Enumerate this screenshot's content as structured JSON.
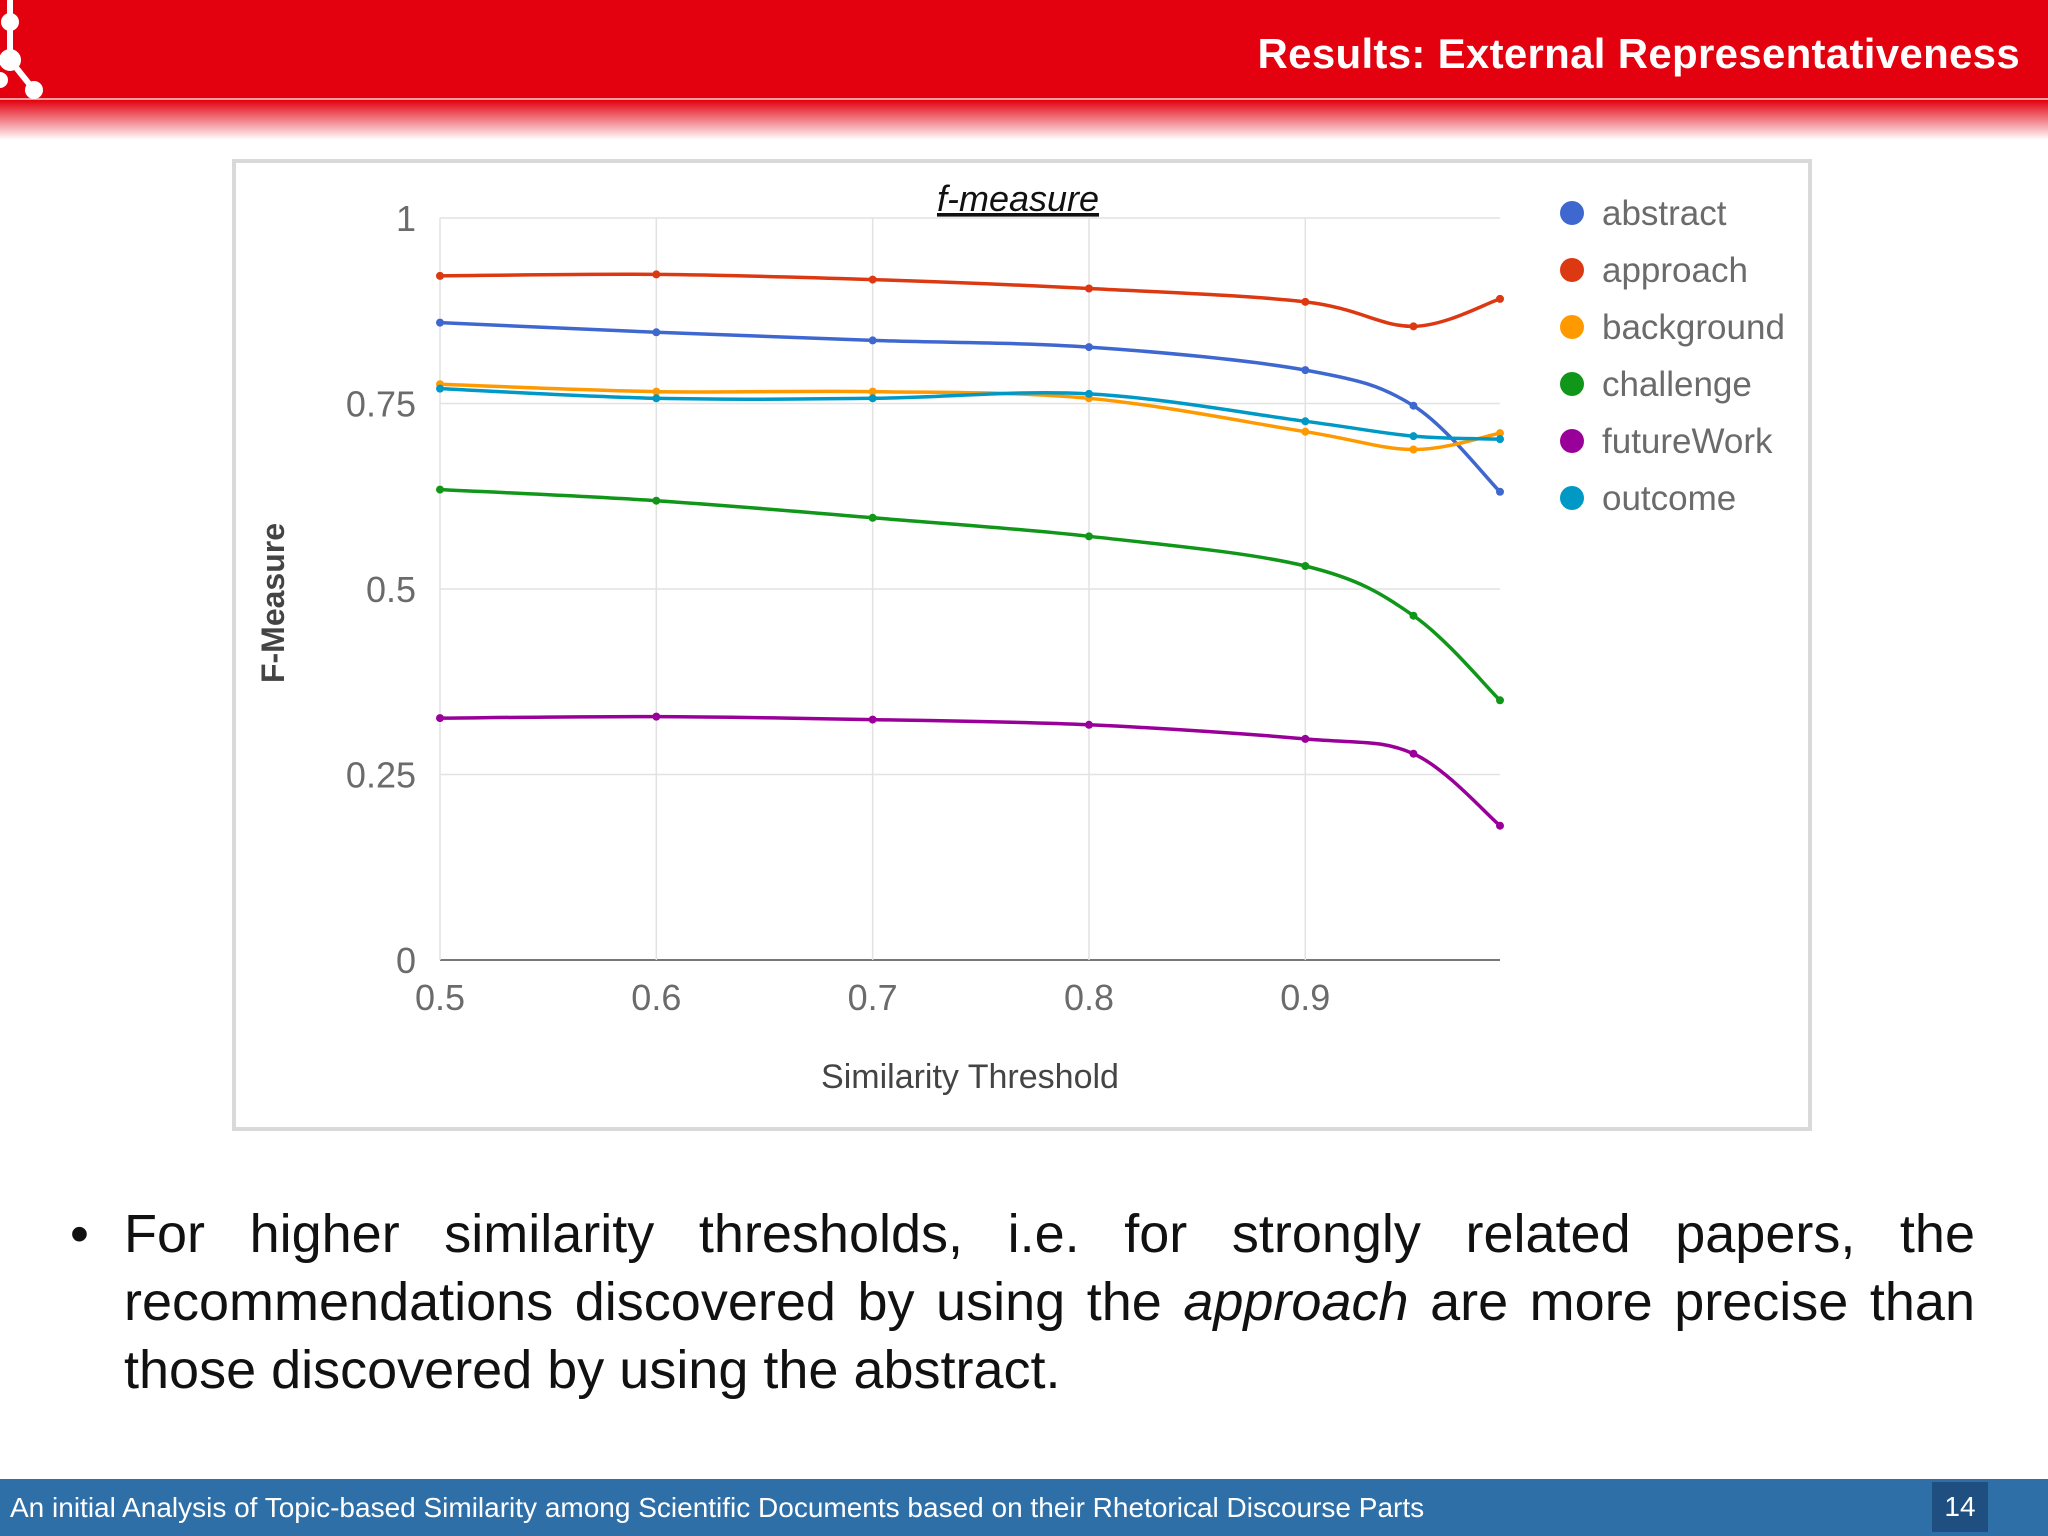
{
  "slide": {
    "title": "Results: External Representativeness",
    "bullet_prefix": "For higher similarity thresholds, i.e. for strongly related papers, the recommendations discovered by using the ",
    "bullet_emph": "approach",
    "bullet_suffix": " are more precise than those discovered by using the abstract.",
    "footer": "An initial Analysis of Topic-based Similarity among  Scientific Documents based on their Rhetorical Discourse Parts",
    "page_number": "14"
  },
  "chart_data": {
    "type": "line",
    "title": "f-measure",
    "xlabel": "Similarity Threshold",
    "ylabel": "F-Measure",
    "xlim": [
      0.5,
      0.99
    ],
    "ylim": [
      0,
      1
    ],
    "x_ticks": [
      "0.5",
      "0.6",
      "0.7",
      "0.8",
      "0.9"
    ],
    "y_ticks": [
      "0",
      "0.25",
      "0.5",
      "0.75",
      "1"
    ],
    "x": [
      0.5,
      0.6,
      0.7,
      0.8,
      0.9,
      0.95,
      0.99
    ],
    "grid": true,
    "legend_position": "right",
    "series": [
      {
        "name": "abstract",
        "color": "#3f67d0",
        "values": [
          0.859,
          0.846,
          0.835,
          0.826,
          0.795,
          0.747,
          0.631
        ]
      },
      {
        "name": "approach",
        "color": "#dc3912",
        "values": [
          0.922,
          0.924,
          0.917,
          0.905,
          0.887,
          0.854,
          0.891
        ]
      },
      {
        "name": "background",
        "color": "#ff9900",
        "values": [
          0.776,
          0.766,
          0.766,
          0.757,
          0.712,
          0.688,
          0.71
        ]
      },
      {
        "name": "challenge",
        "color": "#109618",
        "values": [
          0.634,
          0.619,
          0.596,
          0.571,
          0.531,
          0.464,
          0.35
        ]
      },
      {
        "name": "futureWork",
        "color": "#990099",
        "values": [
          0.326,
          0.328,
          0.324,
          0.317,
          0.298,
          0.278,
          0.181
        ]
      },
      {
        "name": "outcome",
        "color": "#0099c6",
        "values": [
          0.77,
          0.757,
          0.757,
          0.763,
          0.726,
          0.706,
          0.702
        ]
      }
    ]
  }
}
